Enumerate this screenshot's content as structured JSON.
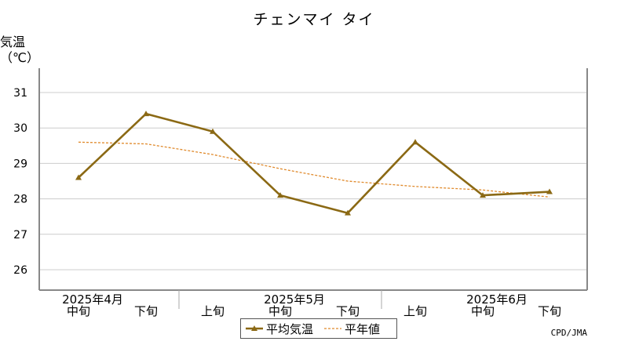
{
  "title": "チェンマイ タイ",
  "y_axis_label": [
    "気温",
    "（℃）"
  ],
  "credit": "CPD/JMA",
  "colors": {
    "series": "#8B6914",
    "normal": "#E08A2C",
    "grid": "#cccccc",
    "axis": "#888888"
  },
  "legend": [
    {
      "label": "平均気温",
      "style": "solid-triangle"
    },
    {
      "label": "平年値",
      "style": "dashed"
    }
  ],
  "chart_data": {
    "type": "line",
    "title": "チェンマイ タイ",
    "ylabel": "気温（℃）",
    "xlabel": "",
    "ylim": [
      25.5,
      31.5
    ],
    "yticks": [
      26,
      27,
      28,
      29,
      30,
      31
    ],
    "grid": true,
    "legend_position": "bottom",
    "categories": [
      "中旬",
      "下旬",
      "上旬",
      "中旬",
      "下旬",
      "上旬",
      "中旬",
      "下旬"
    ],
    "month_labels": [
      {
        "label": "2025年4月",
        "category_index": 0
      },
      {
        "label": "2025年5月",
        "category_index": 3
      },
      {
        "label": "2025年6月",
        "category_index": 6
      }
    ],
    "series": [
      {
        "name": "平均気温",
        "values": [
          28.6,
          30.4,
          29.9,
          28.1,
          27.6,
          29.6,
          28.1,
          28.2
        ]
      },
      {
        "name": "平年値",
        "values": [
          29.6,
          29.55,
          29.25,
          28.85,
          28.5,
          28.35,
          28.25,
          28.05
        ]
      }
    ]
  }
}
